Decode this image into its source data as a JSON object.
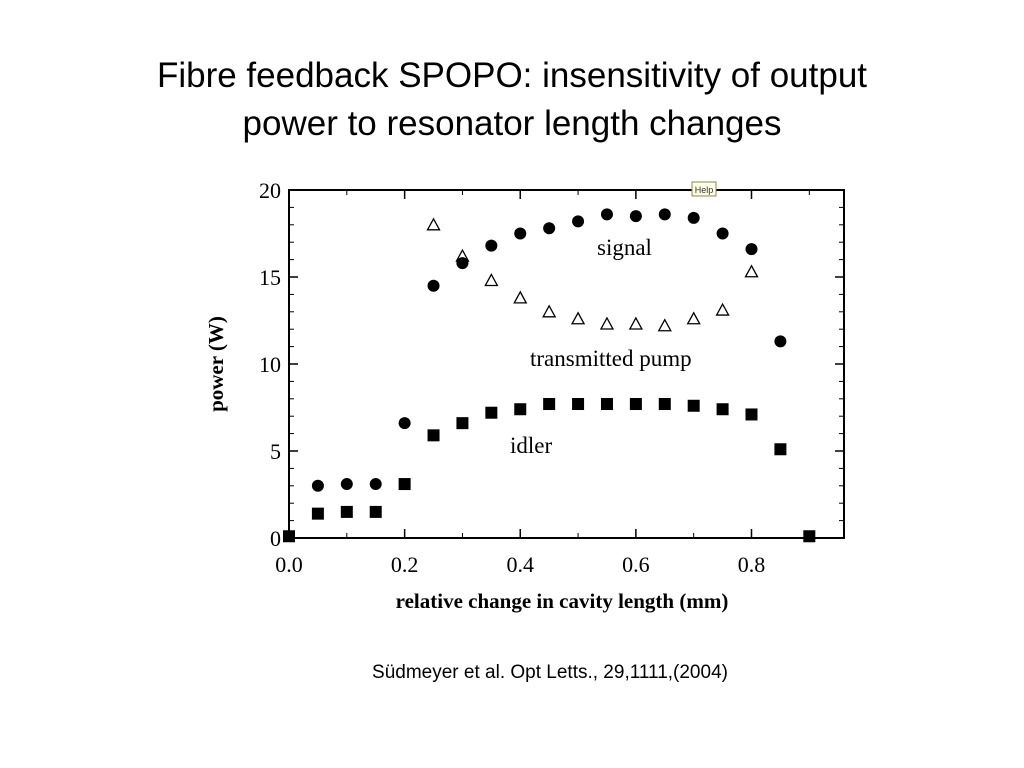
{
  "slide": {
    "title_line1": "Fibre feedback SPOPO: insensitivity of output",
    "title_line2": "power to resonator length changes",
    "citation": "Südmeyer et al. Opt Letts., 29,1111,(2004)",
    "help_label": "Help"
  },
  "chart_data": {
    "type": "scatter",
    "xlabel": "relative change in cavity length (mm)",
    "ylabel": "power (W)",
    "xlim": [
      0.0,
      0.96
    ],
    "ylim": [
      0,
      20
    ],
    "x_ticks": [
      0.0,
      0.2,
      0.4,
      0.6,
      0.8
    ],
    "x_tick_labels": [
      "0.0",
      "0.2",
      "0.4",
      "0.6",
      "0.8"
    ],
    "y_ticks": [
      0,
      5,
      10,
      15,
      20
    ],
    "y_tick_labels": [
      "0",
      "5",
      "10",
      "15",
      "20"
    ],
    "grid": false,
    "series": [
      {
        "name": "signal",
        "marker": "circle",
        "color": "#000000",
        "x": [
          0.05,
          0.1,
          0.15,
          0.2,
          0.25,
          0.3,
          0.35,
          0.4,
          0.45,
          0.5,
          0.55,
          0.6,
          0.65,
          0.7,
          0.75,
          0.8,
          0.85
        ],
        "y": [
          3.0,
          3.1,
          3.1,
          6.6,
          14.5,
          15.8,
          16.8,
          17.5,
          17.8,
          18.2,
          18.6,
          18.5,
          18.6,
          18.4,
          17.5,
          16.6,
          11.3
        ]
      },
      {
        "name": "transmitted pump",
        "marker": "triangle-open",
        "color": "#000000",
        "x": [
          0.25,
          0.3,
          0.35,
          0.4,
          0.45,
          0.5,
          0.55,
          0.6,
          0.65,
          0.7,
          0.75,
          0.8
        ],
        "y": [
          18.0,
          16.2,
          14.8,
          13.8,
          13.0,
          12.6,
          12.3,
          12.3,
          12.2,
          12.6,
          13.1,
          15.3
        ]
      },
      {
        "name": "idler",
        "marker": "square",
        "color": "#000000",
        "x": [
          0.0,
          0.05,
          0.1,
          0.15,
          0.2,
          0.25,
          0.3,
          0.35,
          0.4,
          0.45,
          0.5,
          0.55,
          0.6,
          0.65,
          0.7,
          0.75,
          0.8,
          0.85,
          0.9
        ],
        "y": [
          0.1,
          1.4,
          1.5,
          1.5,
          3.1,
          5.9,
          6.6,
          7.2,
          7.4,
          7.7,
          7.7,
          7.7,
          7.7,
          7.7,
          7.6,
          7.4,
          7.1,
          5.1,
          0.1
        ]
      }
    ]
  }
}
